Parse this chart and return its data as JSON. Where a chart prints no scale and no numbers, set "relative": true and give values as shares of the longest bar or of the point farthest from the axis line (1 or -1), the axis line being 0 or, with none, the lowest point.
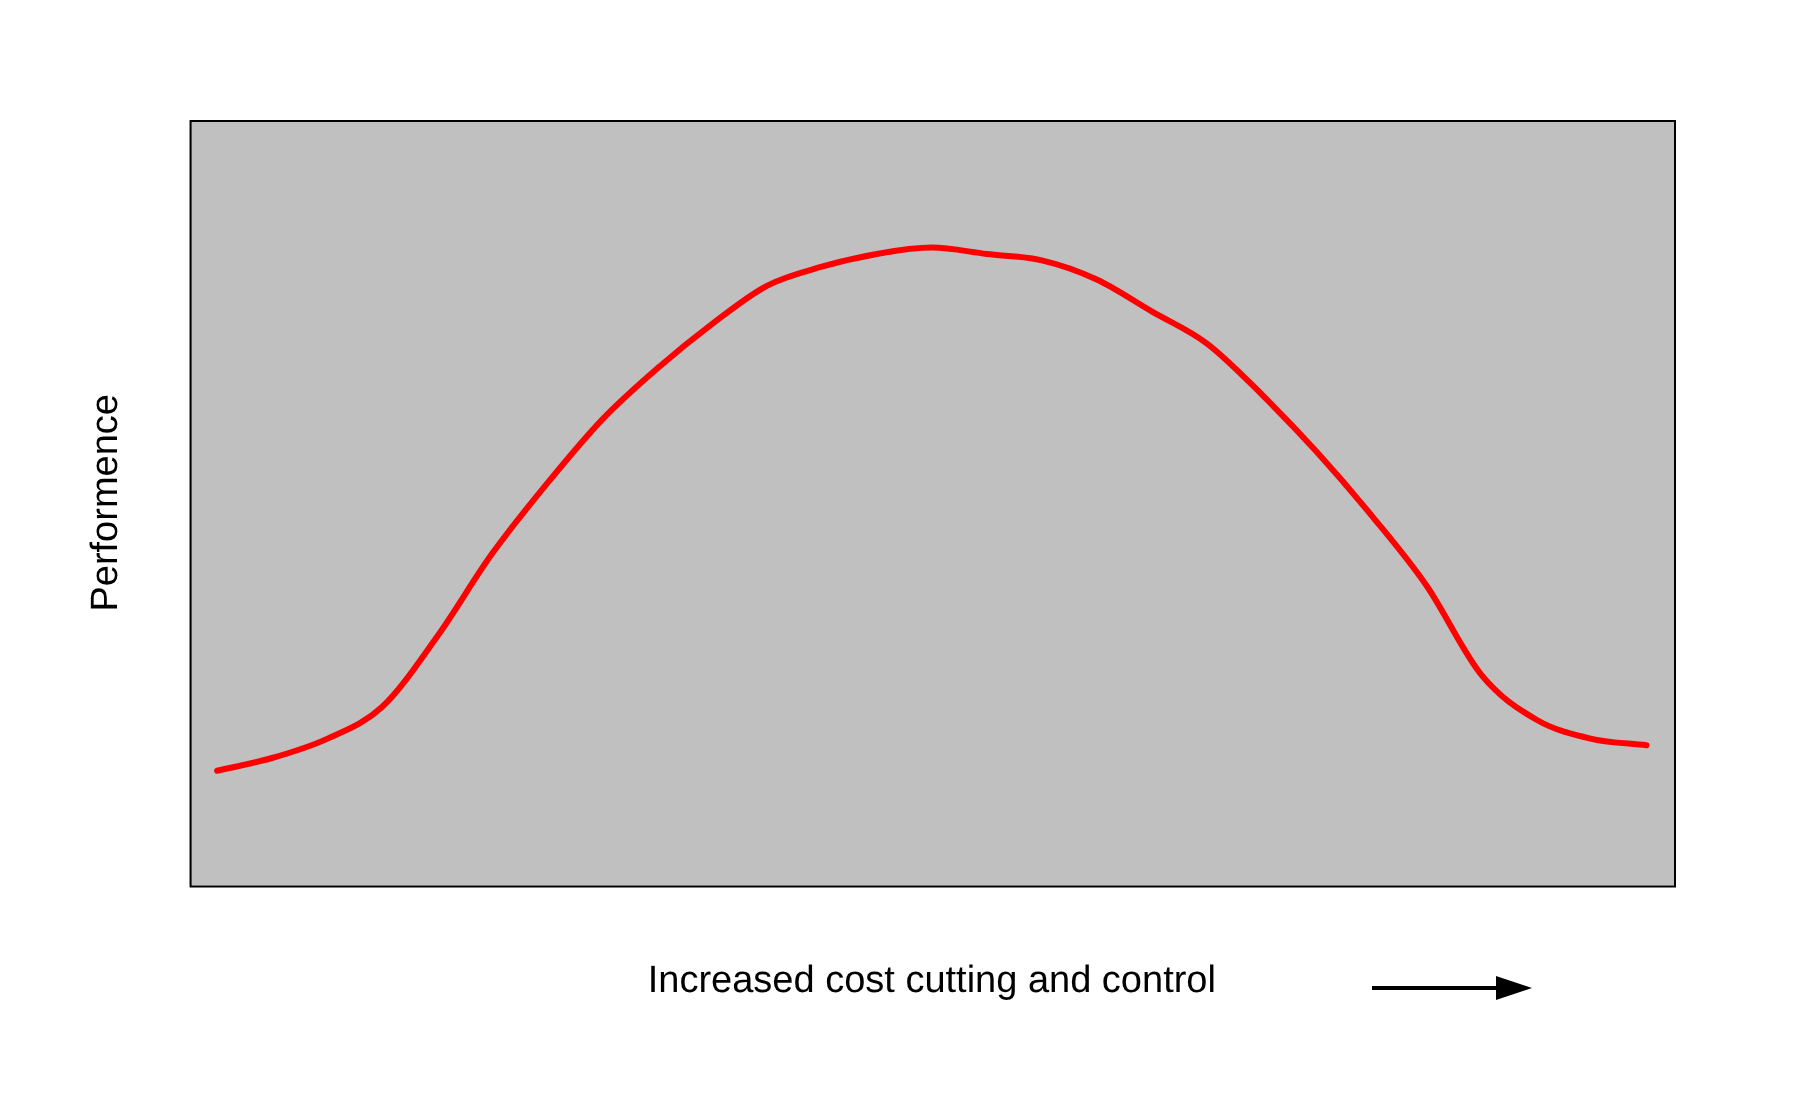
{
  "chart_data": {
    "type": "line",
    "relative": true,
    "xlabel": "Increased cost cutting and control",
    "ylabel": "Performence",
    "categories": [
      null,
      null,
      null,
      null,
      null,
      null,
      null,
      null,
      null,
      null,
      null,
      null,
      null,
      null,
      null,
      null,
      null,
      null,
      null,
      null,
      null,
      null,
      null,
      null,
      null,
      null,
      null
    ],
    "series": [
      {
        "color": "#ff0000",
        "values": [
          0.18,
          0.2,
          0.23,
          0.28,
          0.39,
          0.52,
          0.63,
          0.73,
          0.81,
          0.88,
          0.94,
          0.97,
          0.99,
          1,
          0.99,
          0.98,
          0.95,
          0.9,
          0.85,
          0.77,
          0.68,
          0.58,
          0.47,
          0.33,
          0.26,
          0.23,
          0.22
        ]
      }
    ],
    "grid": false,
    "legend": false,
    "marker": "none",
    "line_style": "solid"
  }
}
